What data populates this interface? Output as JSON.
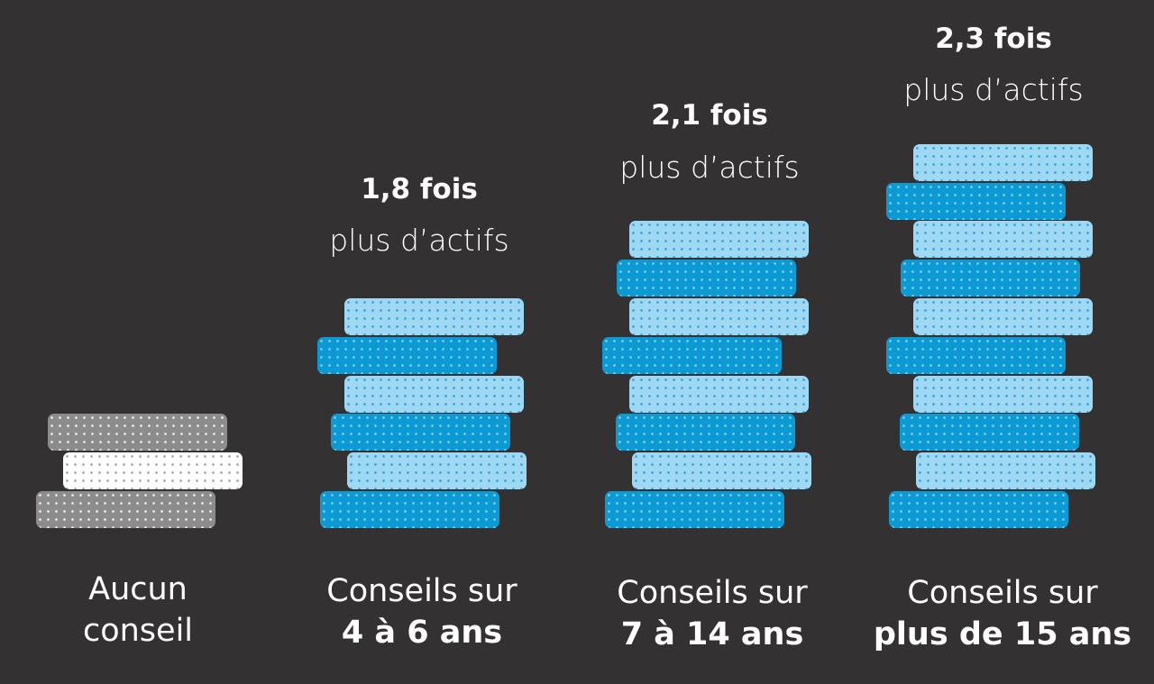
{
  "chart_data": {
    "type": "pictogram-stack",
    "colors": {
      "background": "#333132",
      "light_blue": "#9fd8f3",
      "dark_blue": "#0b9ad4",
      "gray": "#8c8c8c",
      "white": "#ffffff"
    },
    "columns": [
      {
        "label_line1": "Aucun",
        "label_line2": "conseil",
        "ratio": "",
        "ratio_sub": "",
        "stack_count": 3,
        "palette": "gray"
      },
      {
        "label_line1": "Conseils sur",
        "label_line2": "4 à 6 ans",
        "ratio": "1,8 fois",
        "ratio_sub": "plus d’actifs",
        "stack_count": 6,
        "palette": "blue"
      },
      {
        "label_line1": "Conseils sur",
        "label_line2": "7 à 14 ans",
        "ratio": "2,1 fois",
        "ratio_sub": "plus d’actifs",
        "stack_count": 8,
        "palette": "blue"
      },
      {
        "label_line1": "Conseils sur",
        "label_line2": "plus de 15 ans",
        "ratio": "2,3 fois",
        "ratio_sub": "plus d’actifs",
        "stack_count": 10,
        "palette": "blue"
      }
    ]
  }
}
